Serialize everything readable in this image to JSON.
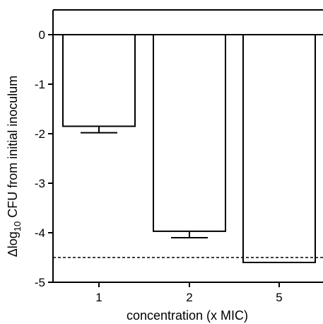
{
  "chart_data": {
    "type": "bar",
    "title": "",
    "xlabel": "concentration (x MIC)",
    "ylabel": {
      "prefix": "Δlog",
      "subscript": "10",
      "suffix": " CFU from initial inoculum"
    },
    "categories": [
      "1",
      "2",
      "5"
    ],
    "values": [
      -1.85,
      -3.97,
      -4.6
    ],
    "errors": [
      0.13,
      0.13,
      0
    ],
    "ylim": [
      -5,
      0.5
    ],
    "yticks": [
      0,
      -1,
      -2,
      -3,
      -4,
      -5
    ],
    "ytick_labels": [
      "0",
      "-1",
      "-2",
      "-3",
      "-4",
      "-5"
    ],
    "reference_lines": [
      {
        "y": 0,
        "style": "solid"
      },
      {
        "y": -4.5,
        "style": "dashed"
      }
    ],
    "grid": false,
    "legend": "none",
    "colors": {
      "bar_fill": "#ffffff",
      "stroke": "#000000"
    }
  }
}
